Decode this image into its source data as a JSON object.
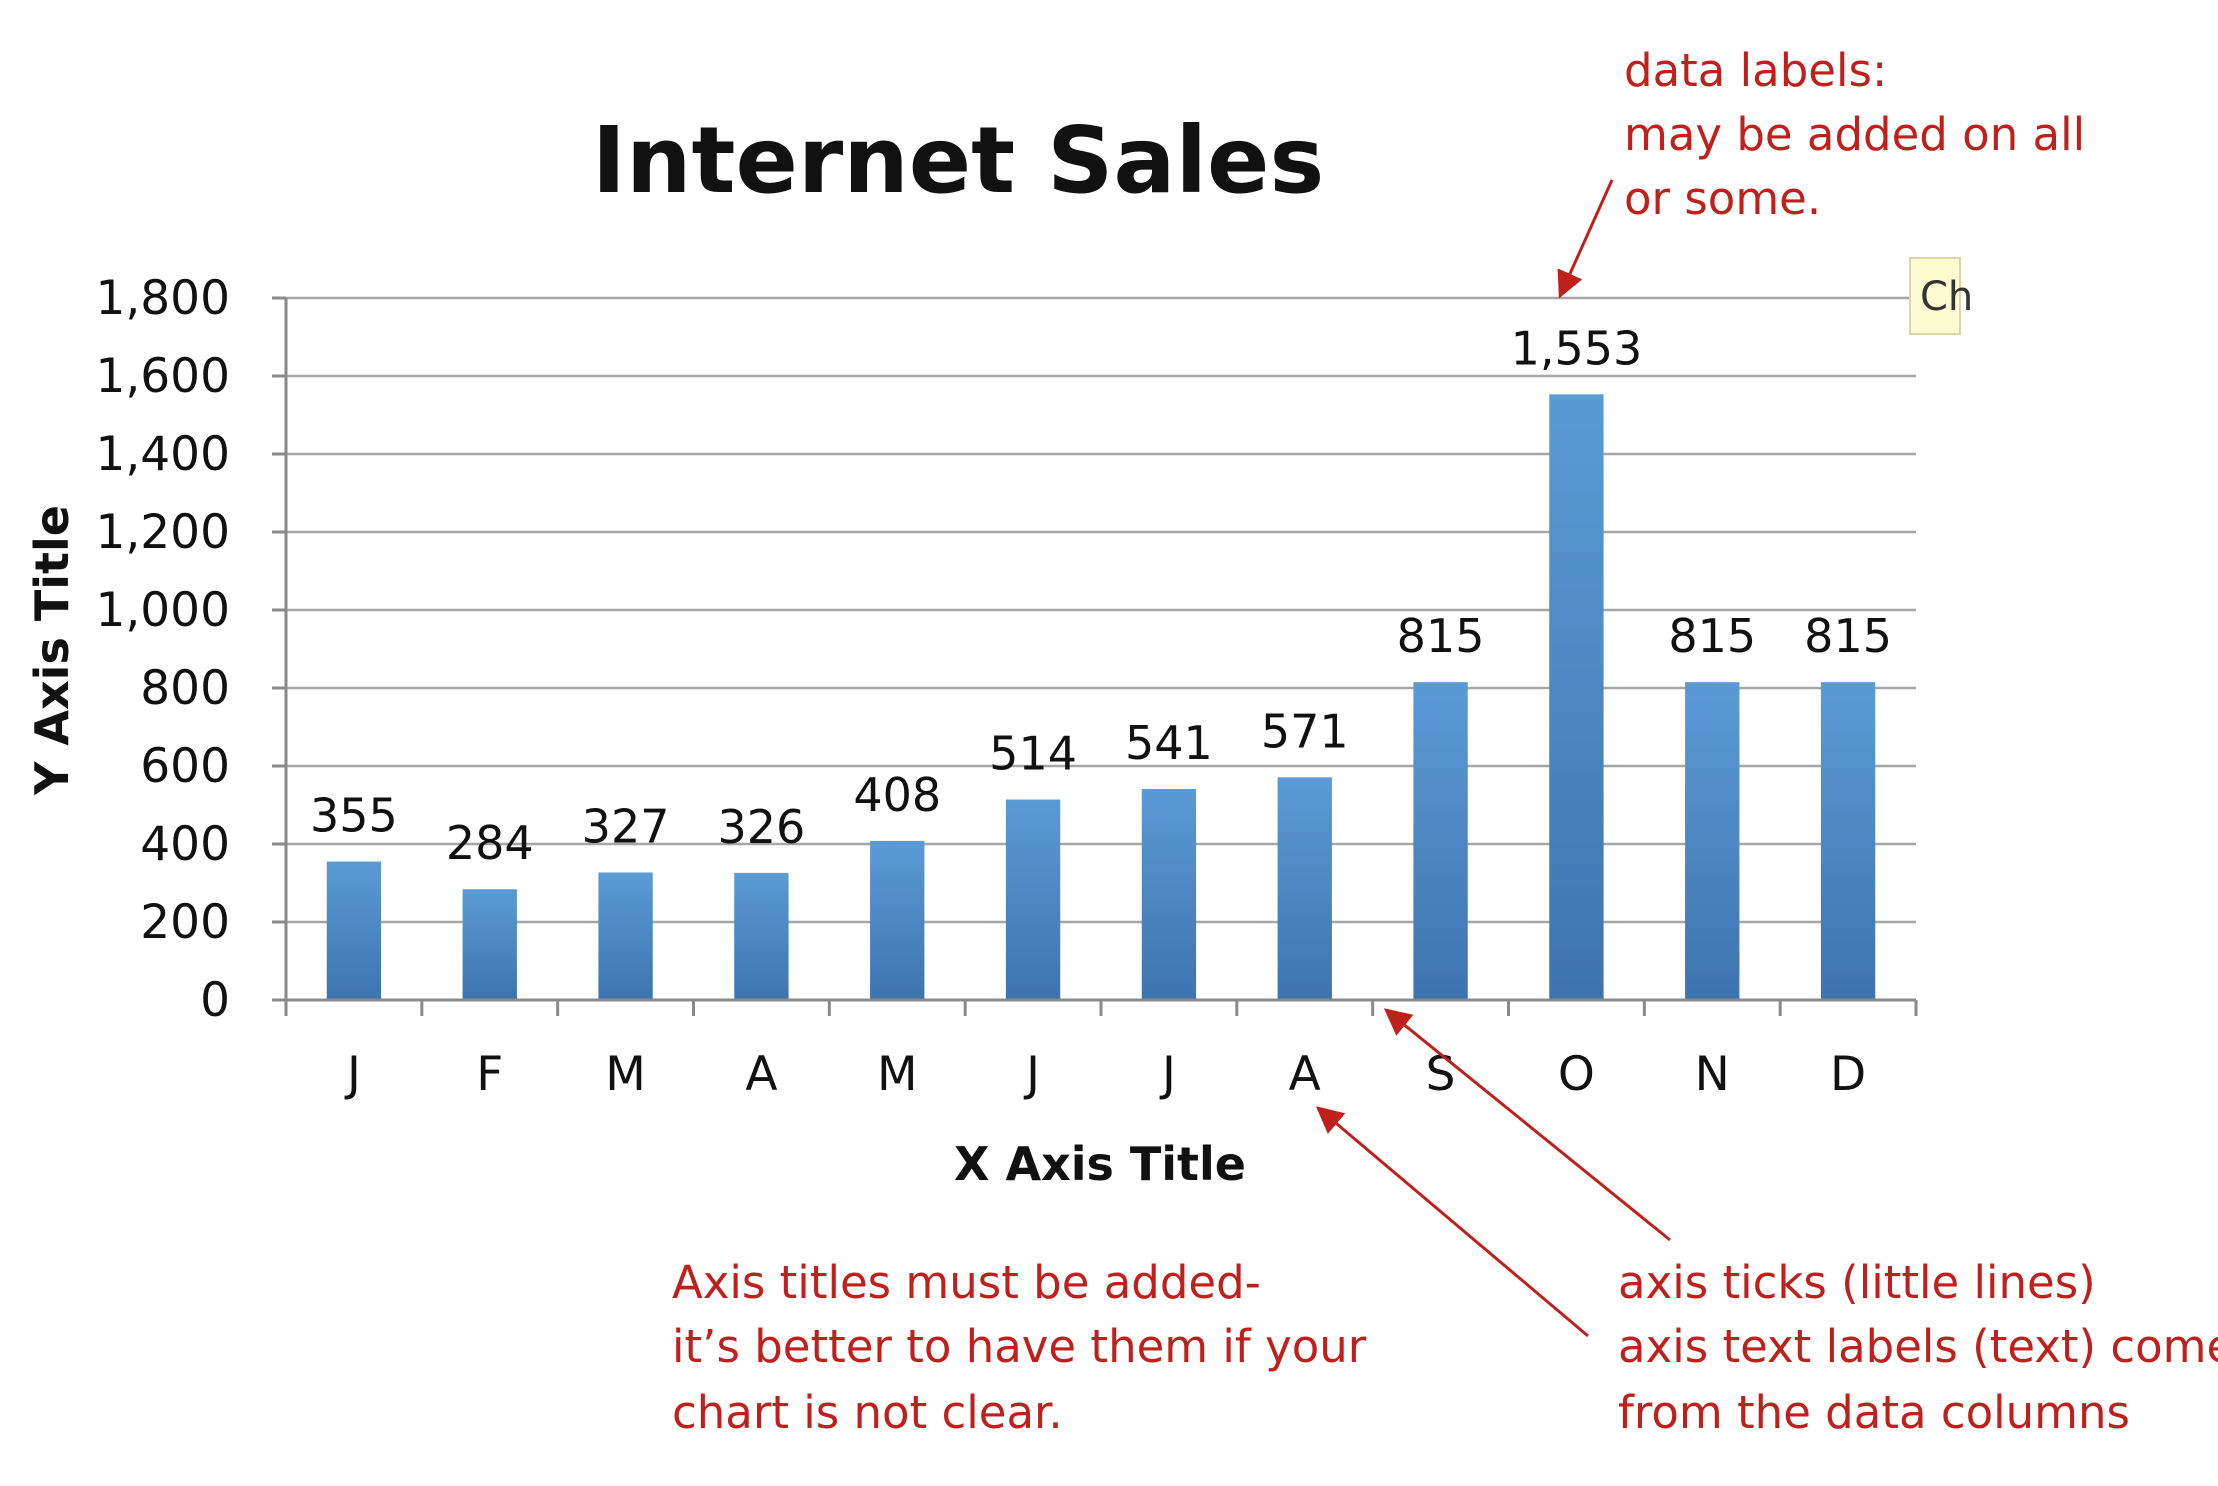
{
  "chart_data": {
    "type": "bar",
    "title": "Internet Sales",
    "xlabel": "X Axis Title",
    "ylabel": "Y Axis Title",
    "categories": [
      "J",
      "F",
      "M",
      "A",
      "M",
      "J",
      "J",
      "A",
      "S",
      "O",
      "N",
      "D"
    ],
    "values": [
      355,
      284,
      327,
      326,
      408,
      514,
      541,
      571,
      815,
      1553,
      815,
      815
    ],
    "data_labels": [
      "355",
      "284",
      "327",
      "326",
      "408",
      "514",
      "541",
      "571",
      "815",
      "1,553",
      "815",
      "815"
    ],
    "ylim": [
      0,
      1800
    ],
    "yticks": [
      "0",
      "200",
      "400",
      "600",
      "800",
      "1,000",
      "1,200",
      "1,400",
      "1,600",
      "1,800"
    ],
    "grid": true,
    "legend": "none",
    "bar_color_top": "#5b9bd5",
    "bar_color_bottom": "#3d74b0",
    "annotations": {
      "data_labels_note": [
        "data labels:",
        "may be added on all",
        "or some."
      ],
      "axis_titles_note": [
        "Axis titles must be added-",
        "it’s better to have them if your",
        "chart is not clear."
      ],
      "axis_ticks_note": [
        "axis ticks (little lines)",
        "axis text labels (text) come",
        "from the data columns"
      ],
      "color": "#c0201c"
    },
    "tooltip_fragment": "Ch"
  }
}
